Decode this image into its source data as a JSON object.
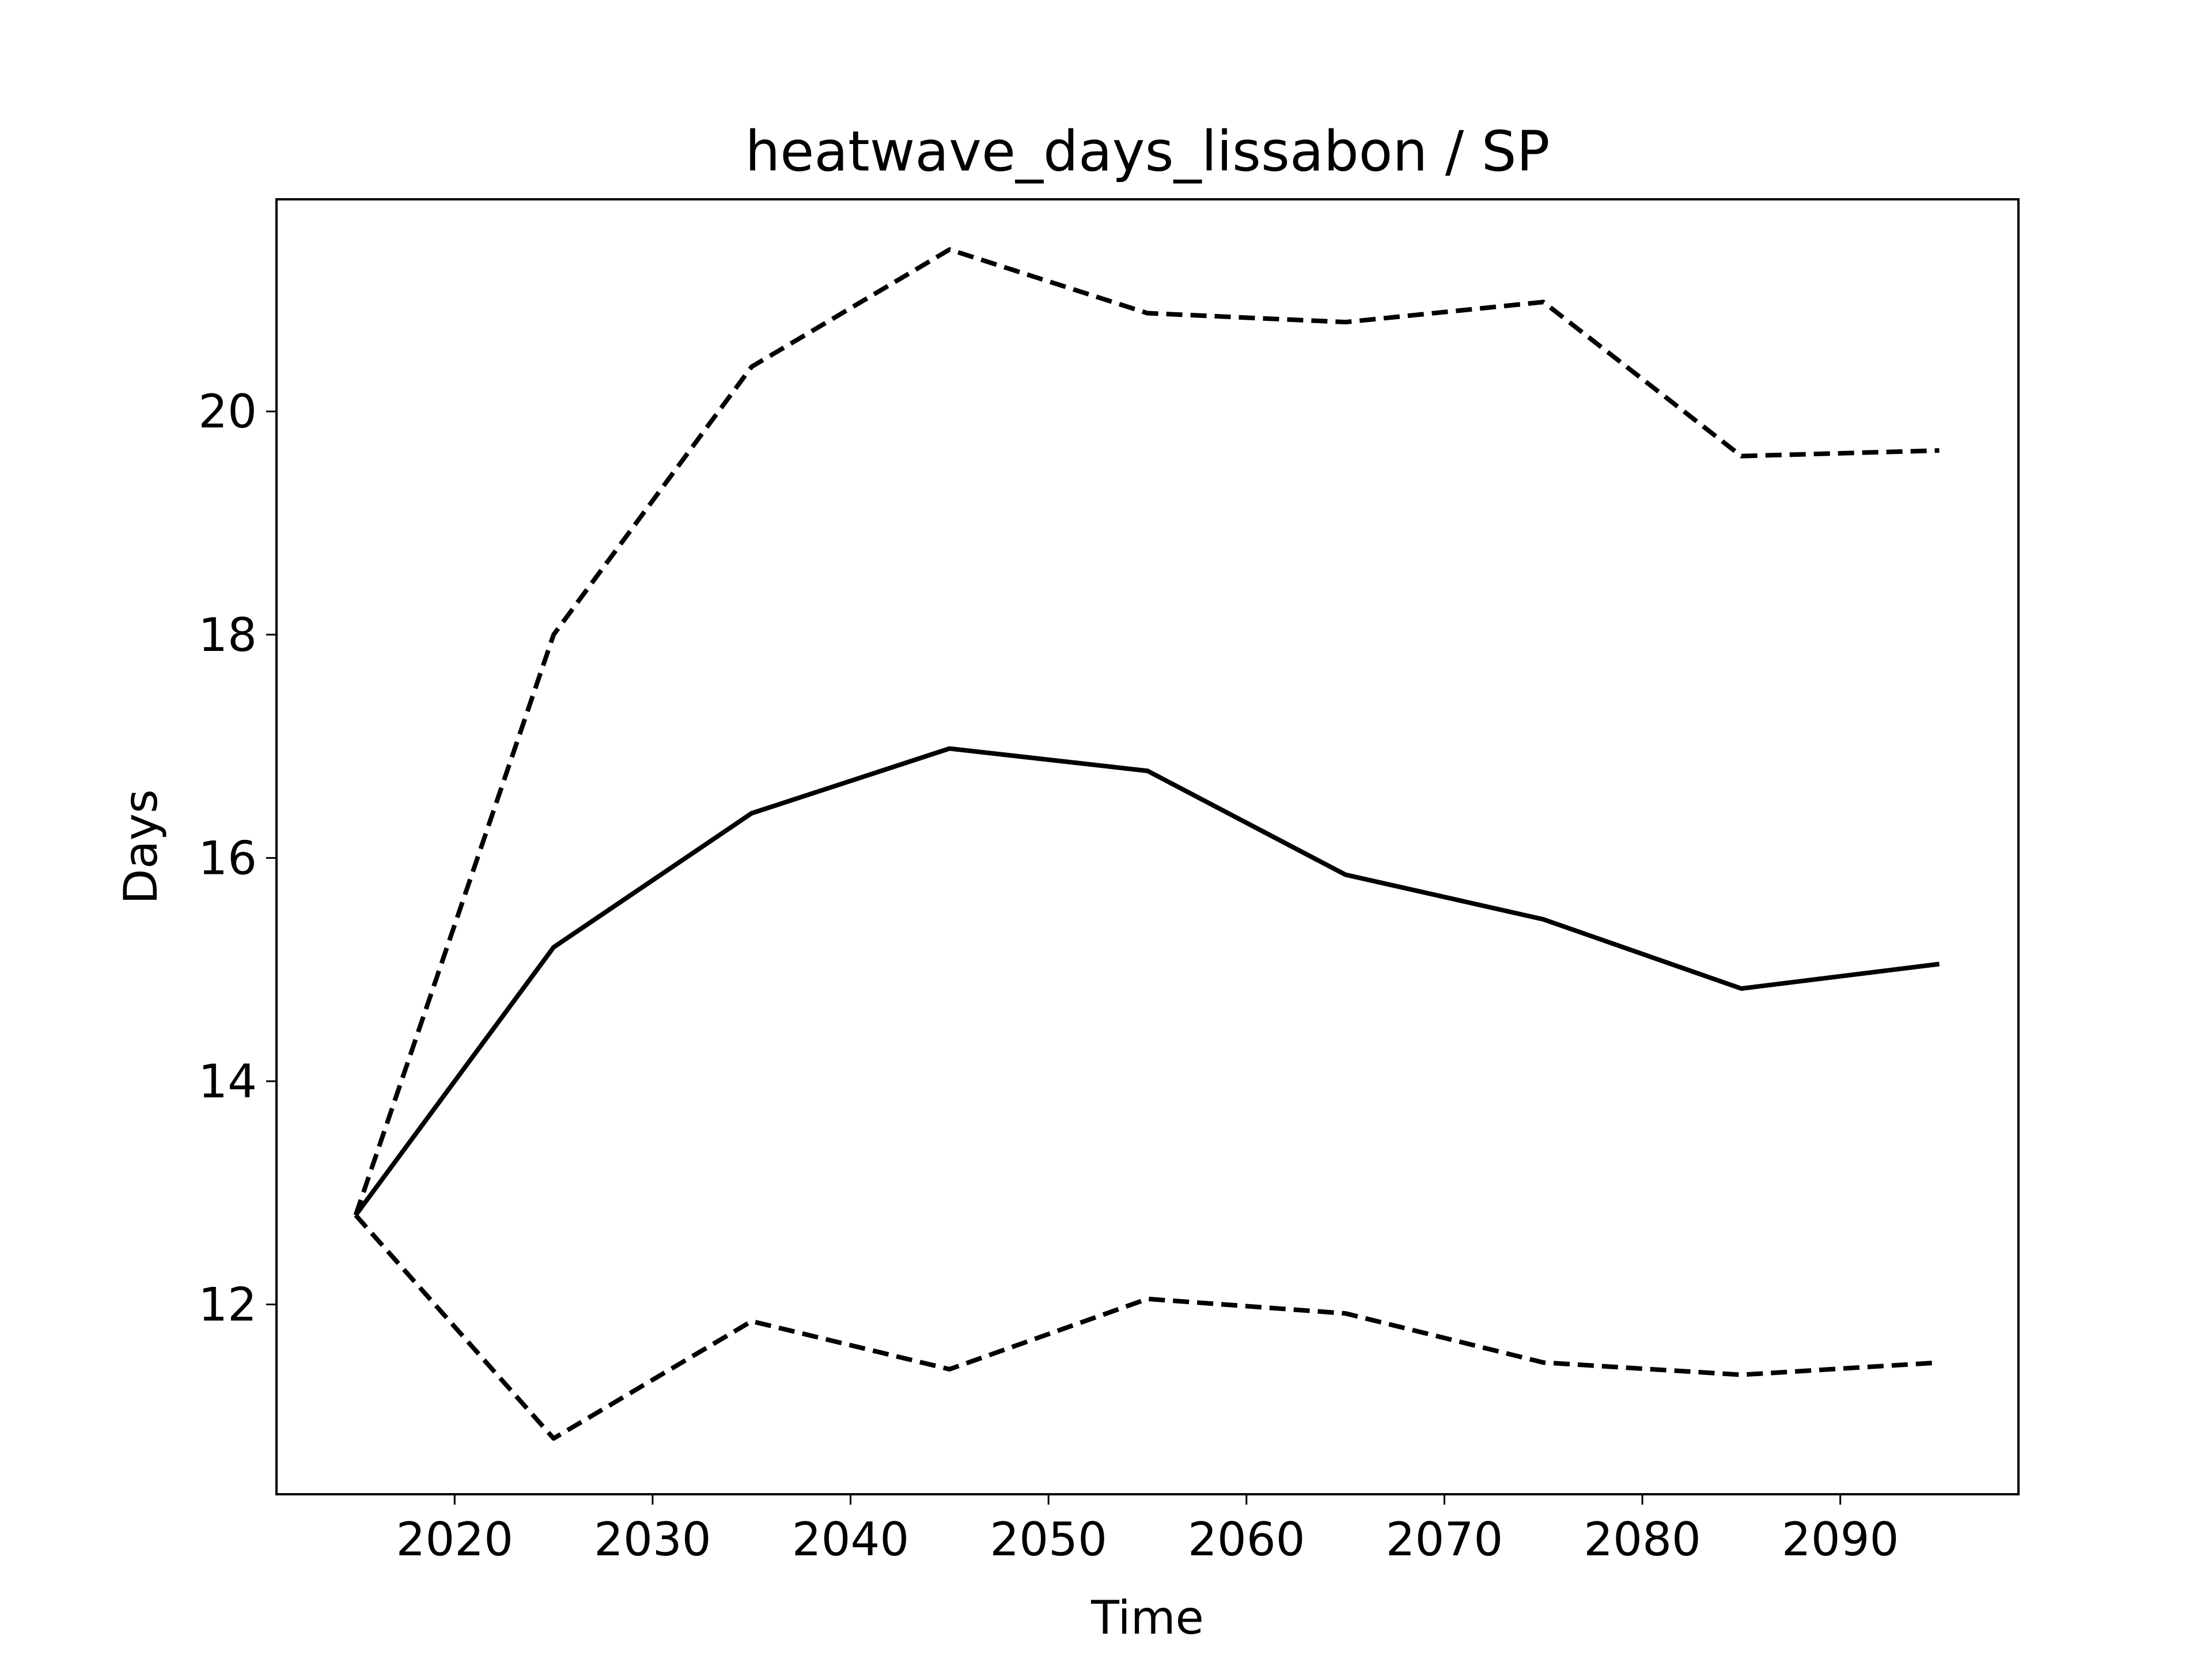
{
  "chart_data": {
    "type": "line",
    "title": "heatwave_days_lissabon / SP",
    "xlabel": "Time",
    "ylabel": "Days",
    "xlim": [
      2011,
      2099
    ],
    "ylim": [
      10.3,
      21.9
    ],
    "xticks": [
      2020,
      2030,
      2040,
      2050,
      2060,
      2070,
      2080,
      2090
    ],
    "yticks": [
      12,
      14,
      16,
      18,
      20
    ],
    "grid": false,
    "x": [
      2015,
      2025,
      2035,
      2045,
      2055,
      2065,
      2075,
      2085,
      2095
    ],
    "series": [
      {
        "style": "dashed",
        "color": "#000000",
        "values": [
          12.8,
          18.0,
          20.4,
          21.45,
          20.88,
          20.8,
          20.98,
          19.6,
          19.65
        ]
      },
      {
        "style": "solid",
        "color": "#000000",
        "values": [
          12.8,
          15.2,
          16.4,
          16.98,
          16.78,
          15.85,
          15.45,
          14.83,
          15.05
        ]
      },
      {
        "style": "dashed",
        "color": "#000000",
        "values": [
          12.8,
          10.8,
          11.85,
          11.42,
          12.05,
          11.92,
          11.48,
          11.37,
          11.48
        ]
      }
    ]
  }
}
